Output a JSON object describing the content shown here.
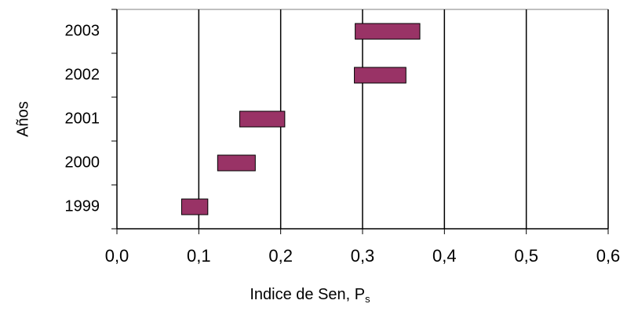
{
  "chart_data": {
    "type": "range-bar",
    "categories": [
      "1999",
      "2000",
      "2001",
      "2002",
      "2003"
    ],
    "low": [
      0.079,
      0.123,
      0.15,
      0.29,
      0.291
    ],
    "high": [
      0.111,
      0.169,
      0.205,
      0.353,
      0.37
    ],
    "color": "#993366",
    "xlim": [
      0,
      0.6
    ],
    "xticks": [
      {
        "value": 0,
        "label": "0,0"
      },
      {
        "value": 0.1,
        "label": "0,1"
      },
      {
        "value": 0.2,
        "label": "0,2"
      },
      {
        "value": 0.3,
        "label": "0,3"
      },
      {
        "value": 0.4,
        "label": "0,4"
      },
      {
        "value": 0.5,
        "label": "0,5"
      },
      {
        "value": 0.6,
        "label": "0,6"
      }
    ],
    "grid": true,
    "x_label": "Indice de Sen, P",
    "x_label_sub": "s",
    "y_label": "Años"
  }
}
